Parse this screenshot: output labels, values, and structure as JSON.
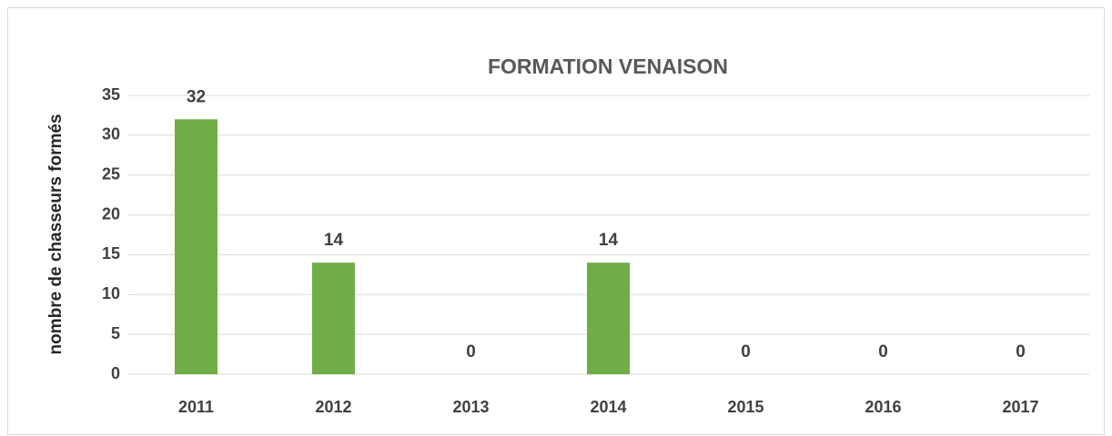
{
  "chart_data": {
    "type": "bar",
    "title": "FORMATION VENAISON",
    "y_label": "nombre de chasseurs formés",
    "categories": [
      "2011",
      "2012",
      "2013",
      "2014",
      "2015",
      "2016",
      "2017"
    ],
    "values": [
      32,
      14,
      0,
      14,
      0,
      0,
      0
    ],
    "color": "#70ad47",
    "ylim": [
      0,
      35
    ],
    "yticks": [
      0,
      5,
      10,
      15,
      20,
      25,
      30,
      35
    ],
    "grid": true
  }
}
